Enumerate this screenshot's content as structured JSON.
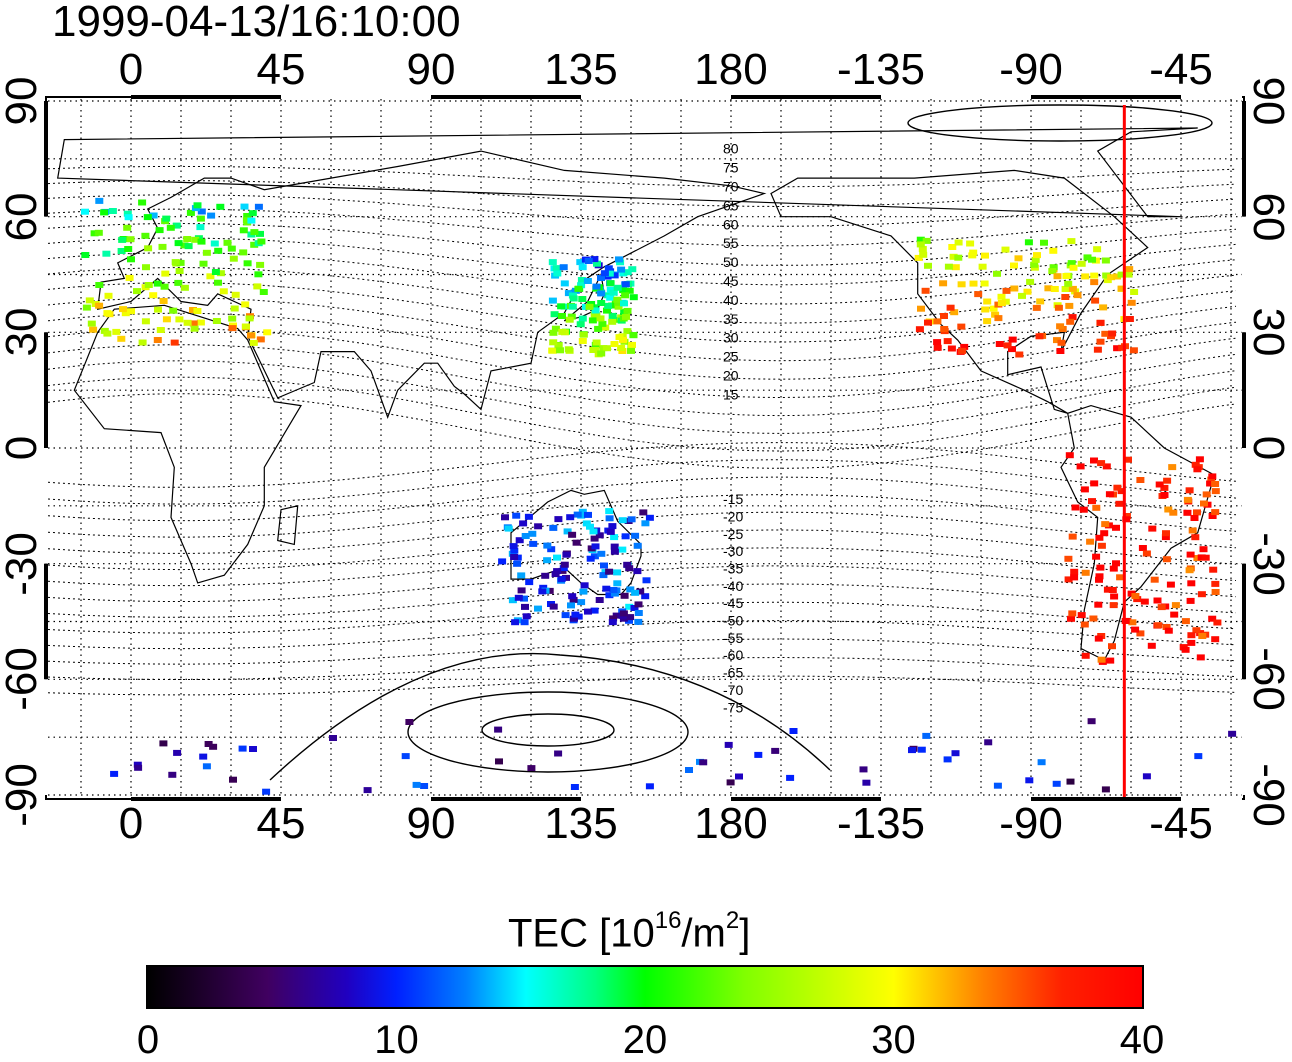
{
  "title": "1999-04-13/16:10:00",
  "longitude_ticks": [
    "0",
    "45",
    "90",
    "135",
    "180",
    "-135",
    "-90",
    "-45"
  ],
  "latitude_ticks": [
    "90",
    "60",
    "30",
    "0",
    "-30",
    "-60",
    "-90"
  ],
  "contour_labels_north": [
    "80",
    "75",
    "70",
    "65",
    "60",
    "55",
    "50",
    "45",
    "40",
    "35",
    "30",
    "25",
    "20",
    "15"
  ],
  "contour_labels_south": [
    "-15",
    "-20",
    "-25",
    "-30",
    "-35",
    "-40",
    "-45",
    "-50",
    "-55",
    "-60",
    "-65",
    "-70",
    "-75"
  ],
  "colorbar": {
    "label_prefix": "TEC  [10",
    "label_exp": "16",
    "label_mid": "/m",
    "label_exp2": "2",
    "label_suffix": "]",
    "ticks": [
      "0",
      "10",
      "20",
      "30",
      "40"
    ]
  },
  "colors": {
    "marker_line": "#ff0000",
    "palette": [
      "#000000",
      "#400060",
      "#0020ff",
      "#00ffff",
      "#00ff00",
      "#ffff00",
      "#ff8000",
      "#ff0000"
    ]
  },
  "marker_longitude": -62,
  "tec_regions": [
    {
      "name": "europe",
      "lon": [
        -15,
        40
      ],
      "lat": [
        28,
        65
      ],
      "tec": 24
    },
    {
      "name": "north-america",
      "lon": [
        -125,
        -60
      ],
      "lat": [
        25,
        55
      ],
      "tec": 32
    },
    {
      "name": "japan",
      "lon": [
        125,
        150
      ],
      "lat": [
        25,
        50
      ],
      "tec": 20
    },
    {
      "name": "south-america",
      "lon": [
        -80,
        -35
      ],
      "lat": [
        -55,
        0
      ],
      "tec": 38
    },
    {
      "name": "australia",
      "lon": [
        110,
        155
      ],
      "lat": [
        -45,
        -15
      ],
      "tec": 10
    },
    {
      "name": "antarctica",
      "lon": [
        -180,
        180
      ],
      "lat": [
        -90,
        -70
      ],
      "tec": 8
    }
  ]
}
